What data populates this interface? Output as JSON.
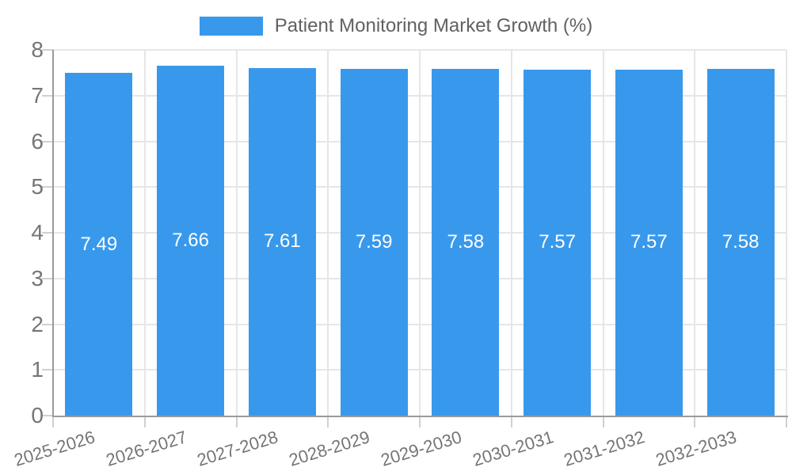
{
  "chart_data": {
    "type": "bar",
    "title": "Patient Monitoring Market Growth (%)",
    "legend": {
      "position": "top",
      "label": "Patient Monitoring Market Growth (%)"
    },
    "categories": [
      "2025-2026",
      "2026-2027",
      "2027-2028",
      "2028-2029",
      "2029-2030",
      "2030-2031",
      "2031-2032",
      "2032-2033"
    ],
    "values": [
      7.49,
      7.66,
      7.61,
      7.59,
      7.58,
      7.57,
      7.57,
      7.58
    ],
    "value_labels": [
      "7.49",
      "7.66",
      "7.61",
      "7.59",
      "7.58",
      "7.57",
      "7.57",
      "7.58"
    ],
    "xlabel": "",
    "ylabel": "",
    "ylim": [
      0,
      8
    ],
    "yticks": [
      0,
      1,
      2,
      3,
      4,
      5,
      6,
      7,
      8
    ],
    "grid": true,
    "x_label_rotation_deg": -17,
    "colors": {
      "bar": "#3899EC",
      "grid": "#E6E6E6",
      "axis": "#9A9A9A",
      "tick": "#D0D0D0",
      "tick_text": "#757575",
      "legend_text": "#616161",
      "bar_label_text": "#FFFFFF",
      "background": "#FFFFFF"
    }
  }
}
